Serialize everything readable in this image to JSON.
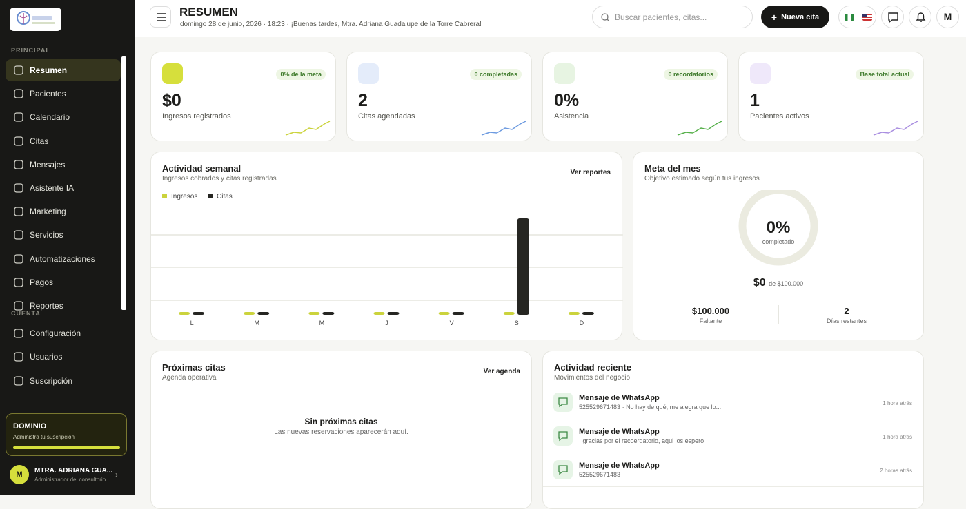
{
  "sidebar": {
    "sections": [
      {
        "title": "PRINCIPAL",
        "items": [
          "Resumen",
          "Pacientes",
          "Calendario",
          "Citas",
          "Mensajes",
          "Asistente IA",
          "Marketing",
          "Servicios",
          "Automatizaciones",
          "Pagos",
          "Reportes"
        ]
      },
      {
        "title": "CUENTA",
        "items": [
          "Configuración",
          "Usuarios",
          "Suscripción"
        ]
      }
    ],
    "plan": {
      "name": "DOMINIO",
      "text": "Administra tu suscripción"
    },
    "user": {
      "initial": "M",
      "name": "MTRA. ADRIANA GUA...",
      "role": "Administrador del consultorio"
    }
  },
  "header": {
    "title": "RESUMEN",
    "subtitle": "domingo 28 de junio, 2026 · 18:23 · ¡Buenas tardes, Mtra. Adriana Guadalupe de la Torre Cabrera!",
    "search_placeholder": "Buscar pacientes, citas...",
    "new_button": "Nueva cita",
    "avatar": "M"
  },
  "kpis": [
    {
      "value": "$0",
      "label": "Ingresos registrados",
      "badge": "0% de la meta"
    },
    {
      "value": "2",
      "label": "Citas agendadas",
      "badge": "0 completadas"
    },
    {
      "value": "0%",
      "label": "Asistencia",
      "badge": "0 recordatorios"
    },
    {
      "value": "1",
      "label": "Pacientes activos",
      "badge": "Base total actual"
    }
  ],
  "weekly": {
    "title": "Actividad semanal",
    "subtitle": "Ingresos cobrados y citas registradas",
    "link": "Ver reportes",
    "chart_data": {
      "type": "bar",
      "categories": [
        "L",
        "M",
        "M",
        "J",
        "V",
        "S",
        "D"
      ],
      "series": [
        {
          "name": "Ingresos",
          "color": "#cbd33c",
          "values": [
            0,
            0,
            0,
            0,
            0,
            0,
            0
          ]
        },
        {
          "name": "Citas",
          "color": "#262622",
          "values": [
            0,
            0,
            0,
            0,
            0,
            2,
            0
          ]
        }
      ],
      "ylim": [
        0,
        2
      ]
    }
  },
  "goal": {
    "title": "Meta del mes",
    "subtitle": "Objetivo estimado según tus ingresos",
    "percent": "0%",
    "percent_caption": "completado",
    "amount": "$0",
    "amount_of": "de $100.000",
    "stats": [
      {
        "value": "$100.000",
        "label": "Faltante"
      },
      {
        "value": "2",
        "label": "Días restantes"
      }
    ]
  },
  "upcoming": {
    "title": "Próximas citas",
    "subtitle": "Agenda operativa",
    "link": "Ver agenda",
    "empty_title": "Sin próximas citas",
    "empty_text": "Las nuevas reservaciones aparecerán aquí."
  },
  "activity": {
    "title": "Actividad reciente",
    "subtitle": "Movimientos del negocio",
    "items": [
      {
        "title": "Mensaje de WhatsApp",
        "text": "525529671483 · No hay de qué, me alegra que lo...",
        "time": "1 hora atrás"
      },
      {
        "title": "Mensaje de WhatsApp",
        "text": "· gracias por el recoerdatorio, aqui los espero",
        "time": "1 hora atrás"
      },
      {
        "title": "Mensaje de WhatsApp",
        "text": "525529671483",
        "time": "2 horas atrás"
      }
    ]
  }
}
